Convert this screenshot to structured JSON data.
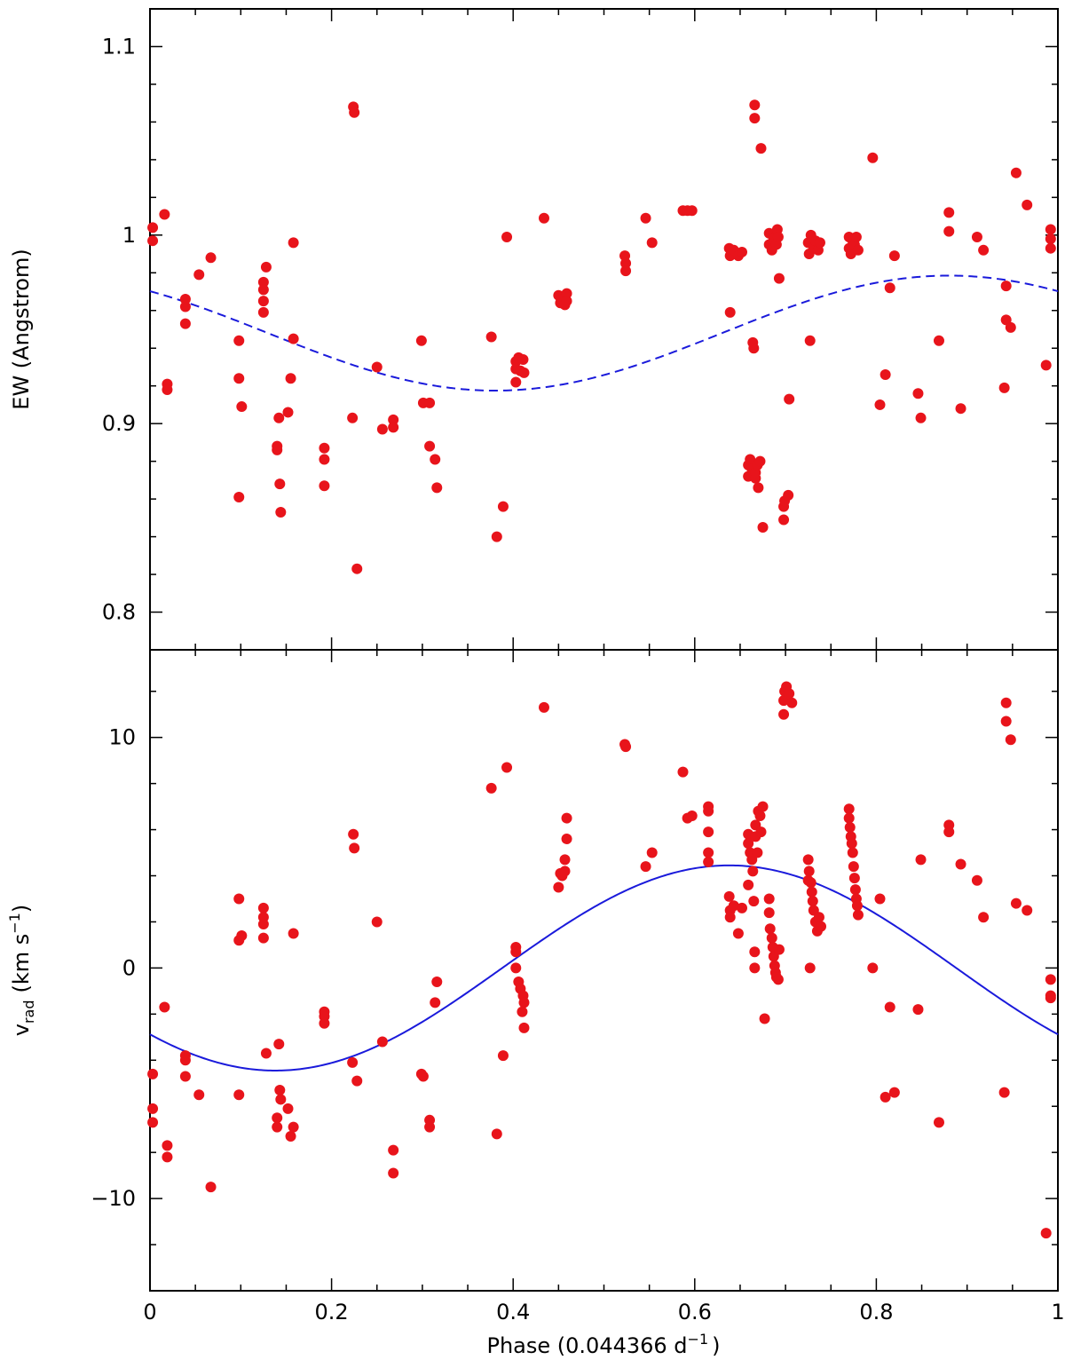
{
  "figure": {
    "xlabel_main": "Phase (0.044366 d",
    "xlabel_sup": "−1",
    "xlabel_close": ")"
  },
  "chart_data": [
    {
      "type": "scatter",
      "ylabel": "EW (Angstrom)",
      "xlim": [
        0,
        1
      ],
      "ylim": [
        0.78,
        1.12
      ],
      "x_ticks": [
        "0",
        "0.2",
        "0.4",
        "0.6",
        "0.8",
        "1"
      ],
      "y_ticks": [
        0.8,
        0.9,
        1.0,
        1.1
      ],
      "y_tick_labels": [
        "0.8",
        "0.9",
        "1",
        "1.1"
      ],
      "grid": false,
      "model": {
        "type": "sine",
        "mean": 0.948,
        "amplitude": 0.0305,
        "phase_of_max": 0.88,
        "style": "dashed",
        "color": "#1a1adb"
      },
      "points": [
        [
          0.003,
          1.004
        ],
        [
          0.003,
          0.997
        ],
        [
          0.016,
          1.011
        ],
        [
          0.019,
          0.921
        ],
        [
          0.019,
          0.918
        ],
        [
          0.039,
          0.966
        ],
        [
          0.039,
          0.962
        ],
        [
          0.039,
          0.953
        ],
        [
          0.054,
          0.979
        ],
        [
          0.067,
          0.988
        ],
        [
          0.098,
          0.944
        ],
        [
          0.098,
          0.924
        ],
        [
          0.098,
          0.861
        ],
        [
          0.101,
          0.909
        ],
        [
          0.125,
          0.975
        ],
        [
          0.125,
          0.971
        ],
        [
          0.125,
          0.965
        ],
        [
          0.125,
          0.959
        ],
        [
          0.128,
          0.983
        ],
        [
          0.14,
          0.888
        ],
        [
          0.14,
          0.886
        ],
        [
          0.142,
          0.903
        ],
        [
          0.143,
          0.868
        ],
        [
          0.144,
          0.853
        ],
        [
          0.152,
          0.906
        ],
        [
          0.155,
          0.924
        ],
        [
          0.158,
          0.945
        ],
        [
          0.158,
          0.996
        ],
        [
          0.192,
          0.887
        ],
        [
          0.192,
          0.881
        ],
        [
          0.192,
          0.867
        ],
        [
          0.223,
          0.903
        ],
        [
          0.224,
          1.068
        ],
        [
          0.225,
          1.065
        ],
        [
          0.228,
          0.823
        ],
        [
          0.25,
          0.93
        ],
        [
          0.256,
          0.897
        ],
        [
          0.268,
          0.902
        ],
        [
          0.268,
          0.898
        ],
        [
          0.299,
          0.944
        ],
        [
          0.301,
          0.911
        ],
        [
          0.308,
          0.888
        ],
        [
          0.308,
          0.911
        ],
        [
          0.314,
          0.881
        ],
        [
          0.316,
          0.866
        ],
        [
          0.376,
          0.946
        ],
        [
          0.382,
          0.84
        ],
        [
          0.389,
          0.856
        ],
        [
          0.393,
          0.999
        ],
        [
          0.403,
          0.933
        ],
        [
          0.403,
          0.929
        ],
        [
          0.403,
          0.922
        ],
        [
          0.406,
          0.935
        ],
        [
          0.408,
          0.928
        ],
        [
          0.411,
          0.934
        ],
        [
          0.412,
          0.927
        ],
        [
          0.434,
          1.009
        ],
        [
          0.45,
          0.968
        ],
        [
          0.452,
          0.964
        ],
        [
          0.454,
          0.966
        ],
        [
          0.457,
          0.963
        ],
        [
          0.459,
          0.969
        ],
        [
          0.459,
          0.965
        ],
        [
          0.523,
          0.989
        ],
        [
          0.524,
          0.985
        ],
        [
          0.524,
          0.981
        ],
        [
          0.546,
          1.009
        ],
        [
          0.553,
          0.996
        ],
        [
          0.587,
          1.013
        ],
        [
          0.592,
          1.013
        ],
        [
          0.597,
          1.013
        ],
        [
          0.638,
          0.993
        ],
        [
          0.639,
          0.959
        ],
        [
          0.639,
          0.989
        ],
        [
          0.643,
          0.992
        ],
        [
          0.648,
          0.989
        ],
        [
          0.652,
          0.991
        ],
        [
          0.659,
          0.878
        ],
        [
          0.659,
          0.872
        ],
        [
          0.661,
          0.881
        ],
        [
          0.663,
          0.876
        ],
        [
          0.664,
          0.943
        ],
        [
          0.665,
          0.94
        ],
        [
          0.666,
          1.069
        ],
        [
          0.666,
          1.062
        ],
        [
          0.667,
          0.871
        ],
        [
          0.667,
          0.874
        ],
        [
          0.669,
          0.878
        ],
        [
          0.67,
          0.866
        ],
        [
          0.672,
          0.88
        ],
        [
          0.673,
          1.046
        ],
        [
          0.675,
          0.845
        ],
        [
          0.682,
          0.995
        ],
        [
          0.682,
          1.001
        ],
        [
          0.685,
          0.992
        ],
        [
          0.687,
          0.998
        ],
        [
          0.69,
          0.995
        ],
        [
          0.691,
          1.003
        ],
        [
          0.692,
          0.999
        ],
        [
          0.693,
          0.977
        ],
        [
          0.698,
          0.849
        ],
        [
          0.698,
          0.856
        ],
        [
          0.699,
          0.859
        ],
        [
          0.703,
          0.862
        ],
        [
          0.704,
          0.913
        ],
        [
          0.725,
          0.996
        ],
        [
          0.726,
          0.99
        ],
        [
          0.727,
          0.944
        ],
        [
          0.728,
          1.0
        ],
        [
          0.731,
          0.993
        ],
        [
          0.733,
          0.997
        ],
        [
          0.736,
          0.992
        ],
        [
          0.738,
          0.996
        ],
        [
          0.77,
          0.999
        ],
        [
          0.77,
          0.993
        ],
        [
          0.772,
          0.99
        ],
        [
          0.774,
          0.997
        ],
        [
          0.776,
          0.995
        ],
        [
          0.778,
          0.999
        ],
        [
          0.78,
          0.992
        ],
        [
          0.796,
          1.041
        ],
        [
          0.804,
          0.91
        ],
        [
          0.81,
          0.926
        ],
        [
          0.815,
          0.972
        ],
        [
          0.82,
          0.989
        ],
        [
          0.846,
          0.916
        ],
        [
          0.849,
          0.903
        ],
        [
          0.869,
          0.944
        ],
        [
          0.88,
          1.012
        ],
        [
          0.88,
          1.002
        ],
        [
          0.893,
          0.908
        ],
        [
          0.911,
          0.999
        ],
        [
          0.918,
          0.992
        ],
        [
          0.941,
          0.919
        ],
        [
          0.943,
          0.973
        ],
        [
          0.943,
          0.955
        ],
        [
          0.948,
          0.951
        ],
        [
          0.954,
          1.033
        ],
        [
          0.966,
          1.016
        ],
        [
          0.987,
          0.931
        ],
        [
          0.992,
          1.003
        ],
        [
          0.992,
          0.998
        ],
        [
          0.992,
          0.993
        ]
      ]
    },
    {
      "type": "scatter",
      "ylabel_main": "v",
      "ylabel_sub": "rad",
      "ylabel_units": "(km s",
      "ylabel_sup": "−1",
      "ylabel_close": ")",
      "xlim": [
        0,
        1
      ],
      "ylim": [
        -14.0,
        13.8
      ],
      "x_ticks": [
        "0",
        "0.2",
        "0.4",
        "0.6",
        "0.8",
        "1"
      ],
      "y_ticks": [
        -10,
        0,
        10
      ],
      "y_tick_labels": [
        "−10",
        "0",
        "10"
      ],
      "grid": false,
      "model": {
        "type": "sine",
        "mean": 0.0,
        "amplitude": 4.45,
        "phase_of_max": 0.638,
        "style": "solid",
        "color": "#1a1adb"
      },
      "points": [
        [
          0.003,
          -4.6
        ],
        [
          0.003,
          -6.1
        ],
        [
          0.003,
          -6.7
        ],
        [
          0.016,
          -1.7
        ],
        [
          0.019,
          -7.7
        ],
        [
          0.019,
          -8.2
        ],
        [
          0.039,
          -3.8
        ],
        [
          0.039,
          -4.0
        ],
        [
          0.039,
          -4.7
        ],
        [
          0.054,
          -5.5
        ],
        [
          0.067,
          -9.5
        ],
        [
          0.098,
          3.0
        ],
        [
          0.098,
          1.2
        ],
        [
          0.098,
          -5.5
        ],
        [
          0.101,
          1.4
        ],
        [
          0.125,
          2.6
        ],
        [
          0.125,
          2.2
        ],
        [
          0.125,
          1.9
        ],
        [
          0.125,
          1.3
        ],
        [
          0.128,
          -3.7
        ],
        [
          0.14,
          -6.5
        ],
        [
          0.14,
          -6.9
        ],
        [
          0.142,
          -3.3
        ],
        [
          0.143,
          -5.3
        ],
        [
          0.144,
          -5.7
        ],
        [
          0.152,
          -6.1
        ],
        [
          0.155,
          -7.3
        ],
        [
          0.158,
          1.5
        ],
        [
          0.158,
          -6.9
        ],
        [
          0.192,
          -1.9
        ],
        [
          0.192,
          -2.1
        ],
        [
          0.192,
          -2.4
        ],
        [
          0.223,
          -4.1
        ],
        [
          0.224,
          5.8
        ],
        [
          0.225,
          5.2
        ],
        [
          0.228,
          -4.9
        ],
        [
          0.25,
          2.0
        ],
        [
          0.256,
          -3.2
        ],
        [
          0.268,
          -7.9
        ],
        [
          0.268,
          -8.9
        ],
        [
          0.299,
          -4.6
        ],
        [
          0.301,
          -4.7
        ],
        [
          0.308,
          -6.6
        ],
        [
          0.308,
          -6.9
        ],
        [
          0.314,
          -1.5
        ],
        [
          0.316,
          -0.6
        ],
        [
          0.376,
          7.8
        ],
        [
          0.382,
          -7.2
        ],
        [
          0.389,
          -3.8
        ],
        [
          0.393,
          8.7
        ],
        [
          0.403,
          0.9
        ],
        [
          0.403,
          0.7
        ],
        [
          0.403,
          0.0
        ],
        [
          0.406,
          -0.6
        ],
        [
          0.408,
          -0.9
        ],
        [
          0.411,
          -1.2
        ],
        [
          0.412,
          -1.5
        ],
        [
          0.41,
          -1.9
        ],
        [
          0.412,
          -2.6
        ],
        [
          0.434,
          11.3
        ],
        [
          0.45,
          3.5
        ],
        [
          0.452,
          4.1
        ],
        [
          0.454,
          4.0
        ],
        [
          0.457,
          4.7
        ],
        [
          0.459,
          5.6
        ],
        [
          0.459,
          6.5
        ],
        [
          0.457,
          4.2
        ],
        [
          0.523,
          9.7
        ],
        [
          0.524,
          9.6
        ],
        [
          0.546,
          4.4
        ],
        [
          0.553,
          5.0
        ],
        [
          0.587,
          8.5
        ],
        [
          0.592,
          6.5
        ],
        [
          0.597,
          6.6
        ],
        [
          0.615,
          7.0
        ],
        [
          0.615,
          6.8
        ],
        [
          0.615,
          5.9
        ],
        [
          0.615,
          5.0
        ],
        [
          0.615,
          4.6
        ],
        [
          0.638,
          3.1
        ],
        [
          0.639,
          2.5
        ],
        [
          0.639,
          2.2
        ],
        [
          0.643,
          2.7
        ],
        [
          0.648,
          1.5
        ],
        [
          0.652,
          2.6
        ],
        [
          0.659,
          5.8
        ],
        [
          0.659,
          5.4
        ],
        [
          0.659,
          3.6
        ],
        [
          0.661,
          5.0
        ],
        [
          0.663,
          4.7
        ],
        [
          0.664,
          4.2
        ],
        [
          0.665,
          2.9
        ],
        [
          0.666,
          0.7
        ],
        [
          0.666,
          0.0
        ],
        [
          0.667,
          6.2
        ],
        [
          0.667,
          5.7
        ],
        [
          0.669,
          5.0
        ],
        [
          0.67,
          6.8
        ],
        [
          0.672,
          6.6
        ],
        [
          0.673,
          5.9
        ],
        [
          0.675,
          7.0
        ],
        [
          0.677,
          -2.2
        ],
        [
          0.682,
          3.0
        ],
        [
          0.682,
          2.4
        ],
        [
          0.683,
          1.7
        ],
        [
          0.685,
          1.3
        ],
        [
          0.686,
          0.9
        ],
        [
          0.687,
          0.5
        ],
        [
          0.688,
          0.1
        ],
        [
          0.689,
          -0.2
        ],
        [
          0.69,
          -0.4
        ],
        [
          0.692,
          -0.5
        ],
        [
          0.693,
          0.8
        ],
        [
          0.698,
          11.0
        ],
        [
          0.698,
          11.6
        ],
        [
          0.699,
          12.0
        ],
        [
          0.701,
          12.2
        ],
        [
          0.704,
          11.9
        ],
        [
          0.707,
          11.5
        ],
        [
          0.725,
          4.7
        ],
        [
          0.726,
          4.2
        ],
        [
          0.727,
          0.0
        ],
        [
          0.728,
          3.7
        ],
        [
          0.729,
          3.3
        ],
        [
          0.73,
          2.9
        ],
        [
          0.731,
          2.5
        ],
        [
          0.733,
          2.0
        ],
        [
          0.735,
          1.6
        ],
        [
          0.737,
          2.2
        ],
        [
          0.739,
          1.8
        ],
        [
          0.725,
          3.8
        ],
        [
          0.77,
          6.9
        ],
        [
          0.77,
          6.5
        ],
        [
          0.771,
          6.1
        ],
        [
          0.772,
          5.7
        ],
        [
          0.773,
          5.4
        ],
        [
          0.774,
          5.0
        ],
        [
          0.775,
          4.4
        ],
        [
          0.776,
          3.9
        ],
        [
          0.777,
          3.4
        ],
        [
          0.778,
          3.0
        ],
        [
          0.779,
          2.7
        ],
        [
          0.78,
          2.3
        ],
        [
          0.796,
          0.0
        ],
        [
          0.804,
          3.0
        ],
        [
          0.81,
          -5.6
        ],
        [
          0.815,
          -1.7
        ],
        [
          0.82,
          -5.4
        ],
        [
          0.846,
          -1.8
        ],
        [
          0.849,
          4.7
        ],
        [
          0.869,
          -6.7
        ],
        [
          0.88,
          6.2
        ],
        [
          0.88,
          5.9
        ],
        [
          0.893,
          4.5
        ],
        [
          0.911,
          3.8
        ],
        [
          0.918,
          2.2
        ],
        [
          0.941,
          -5.4
        ],
        [
          0.943,
          11.5
        ],
        [
          0.943,
          10.7
        ],
        [
          0.948,
          9.9
        ],
        [
          0.954,
          2.8
        ],
        [
          0.966,
          2.5
        ],
        [
          0.987,
          -11.5
        ],
        [
          0.992,
          -0.5
        ],
        [
          0.992,
          -1.2
        ],
        [
          0.992,
          -1.3
        ]
      ]
    }
  ]
}
